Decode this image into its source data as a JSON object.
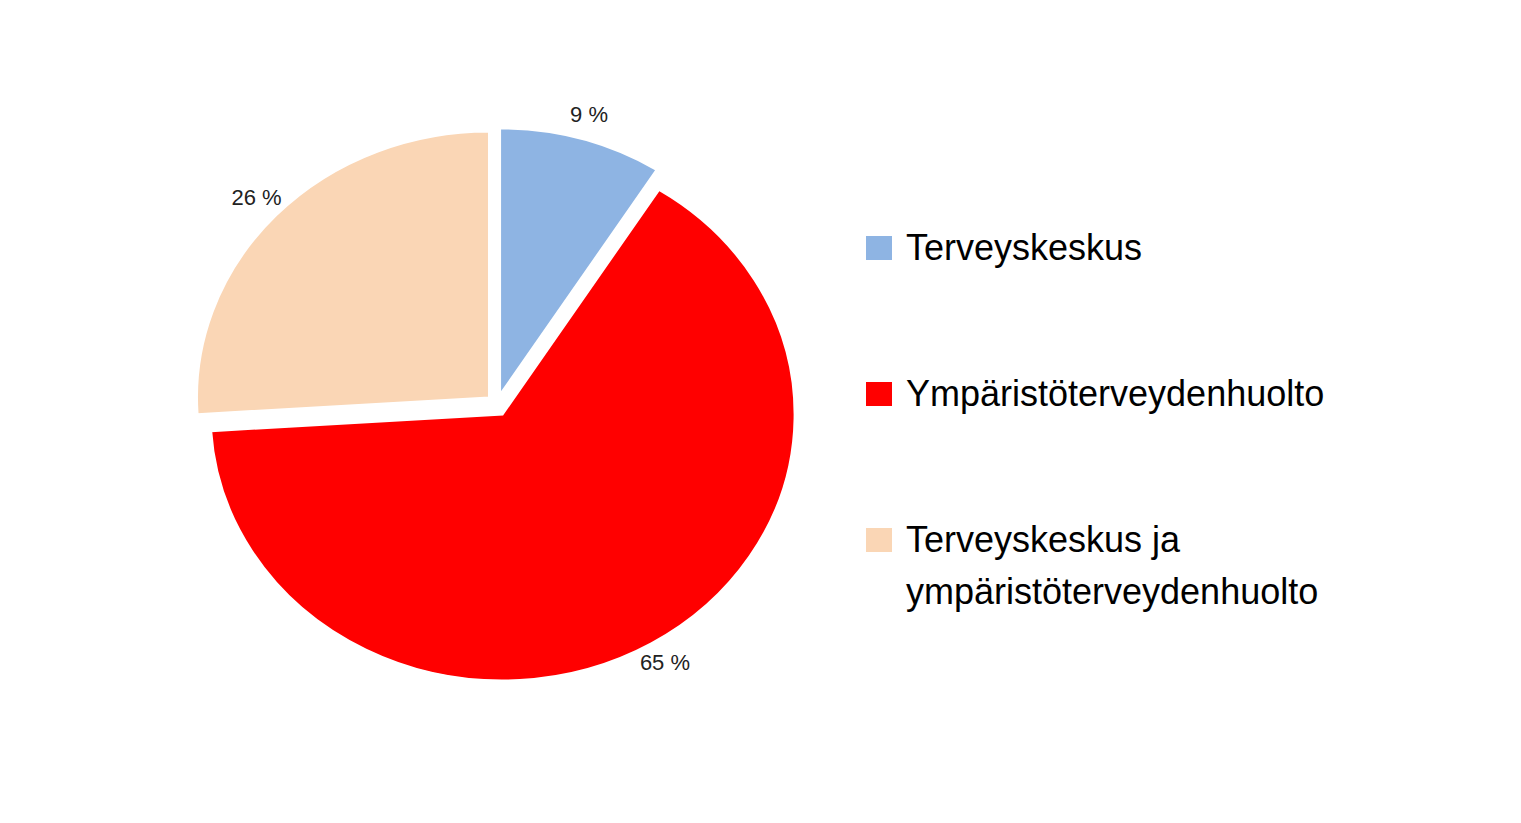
{
  "chart_data": {
    "type": "pie",
    "categories": [
      "Terveyskeskus",
      "Ympäristöterveydenhuolto",
      "Terveyskeskus ja ympäristöterveydenhuolto"
    ],
    "values": [
      9,
      65,
      26
    ],
    "value_labels": [
      "9 %",
      "65 %",
      "26 %"
    ],
    "colors": [
      "#8eb4e3",
      "#ff0000",
      "#fad6b5"
    ],
    "data_labels": true,
    "legend": "right"
  }
}
